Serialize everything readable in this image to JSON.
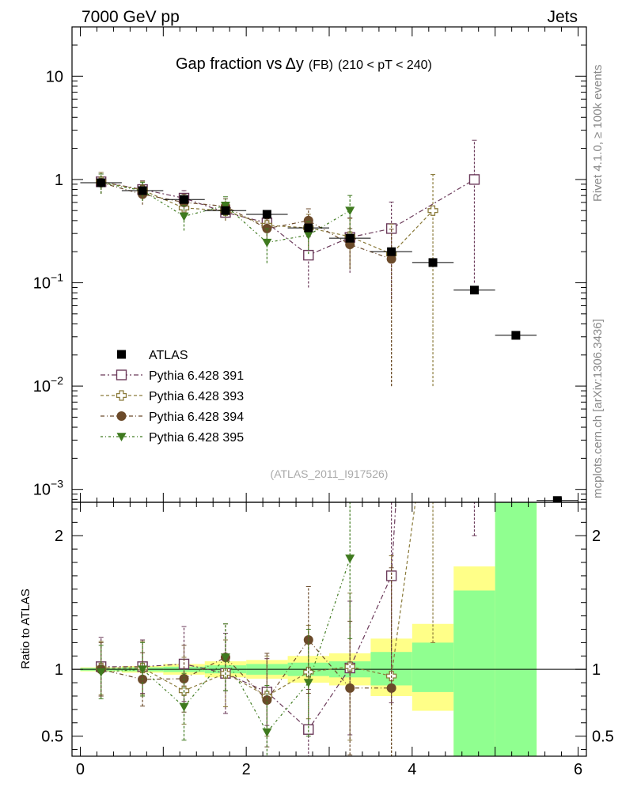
{
  "header": {
    "left": "7000 GeV pp",
    "right": "Jets"
  },
  "side_labels": {
    "rivet": "Rivet 4.1.0, ≥ 100k events",
    "mcplots": "mcplots.cern.ch [arXiv:1306.3436]"
  },
  "watermark": "(ATLAS_2011_I917526)",
  "chart_data": {
    "type": "scatter",
    "title": {
      "main": "Gap fraction vs",
      "delta": "Δy",
      "fb": "(FB)",
      "range": "(210 < pT < 240)"
    },
    "x_range": [
      -0.1,
      6.1
    ],
    "x_ticks": [
      0,
      2,
      4,
      6
    ],
    "x_tick_labels": [
      "0",
      "2",
      "4",
      "6"
    ],
    "top_panel": {
      "yscale": "log",
      "ylim": [
        0.00075,
        30
      ],
      "y_ticks": [
        0.001,
        0.01,
        0.1,
        1,
        10
      ],
      "y_tick_labels": [
        {
          "base": "10",
          "exp": "−3"
        },
        {
          "base": "10",
          "exp": "−2"
        },
        {
          "base": "10",
          "exp": "−1"
        },
        {
          "base": "1",
          "exp": ""
        },
        {
          "base": "10",
          "exp": ""
        }
      ]
    },
    "ratio_panel": {
      "ylabel": "Ratio to ATLAS",
      "ylim": [
        0.35,
        2.25
      ],
      "y_ticks": [
        0.5,
        1,
        2
      ],
      "y_tick_labels": [
        "0.5",
        "1",
        "2"
      ]
    },
    "data": {
      "name": "ATLAS",
      "x": [
        0.25,
        0.75,
        1.25,
        1.75,
        2.25,
        2.75,
        3.25,
        3.75,
        4.25,
        4.75,
        5.25,
        5.75
      ],
      "xerr": 0.25,
      "y": [
        0.93,
        0.78,
        0.64,
        0.5,
        0.46,
        0.34,
        0.27,
        0.2,
        0.157,
        0.085,
        0.031,
        0.00078
      ],
      "bands": [
        {
          "x0": 0.0,
          "x1": 0.5,
          "stat": [
            0.99,
            1.01
          ],
          "tot": [
            0.985,
            1.015
          ]
        },
        {
          "x0": 0.5,
          "x1": 1.0,
          "stat": [
            0.985,
            1.015
          ],
          "tot": [
            0.975,
            1.025
          ]
        },
        {
          "x0": 1.0,
          "x1": 1.5,
          "stat": [
            0.98,
            1.02
          ],
          "tot": [
            0.96,
            1.04
          ]
        },
        {
          "x0": 1.5,
          "x1": 2.0,
          "stat": [
            0.97,
            1.03
          ],
          "tot": [
            0.94,
            1.06
          ]
        },
        {
          "x0": 2.0,
          "x1": 2.5,
          "stat": [
            0.96,
            1.04
          ],
          "tot": [
            0.93,
            1.07
          ]
        },
        {
          "x0": 2.5,
          "x1": 3.0,
          "stat": [
            0.95,
            1.05
          ],
          "tot": [
            0.9,
            1.1
          ]
        },
        {
          "x0": 3.0,
          "x1": 3.5,
          "stat": [
            0.94,
            1.06
          ],
          "tot": [
            0.88,
            1.12
          ]
        },
        {
          "x0": 3.5,
          "x1": 4.0,
          "stat": [
            0.88,
            1.13
          ],
          "tot": [
            0.8,
            1.23
          ]
        },
        {
          "x0": 4.0,
          "x1": 4.5,
          "stat": [
            0.83,
            1.2
          ],
          "tot": [
            0.69,
            1.34
          ]
        },
        {
          "x0": 4.5,
          "x1": 5.0,
          "stat": [
            0.35,
            1.59
          ],
          "tot": [
            0.35,
            1.77
          ]
        },
        {
          "x0": 5.0,
          "x1": 5.5,
          "stat": [
            0.35,
            2.25
          ],
          "tot": [
            0.35,
            2.25
          ]
        }
      ]
    },
    "series": [
      {
        "name": "Pythia 6.428 391",
        "color": "#6b3a5a",
        "marker": "open-square",
        "dash": "6,3,2,3",
        "x": [
          0.25,
          0.75,
          1.25,
          1.75,
          2.25,
          2.75,
          3.25,
          3.75,
          4.75
        ],
        "y": [
          0.95,
          0.8,
          0.66,
          0.48,
          0.38,
          0.185,
          0.275,
          0.335,
          1.0
        ],
        "err_lo": [
          0.22,
          0.17,
          0.12,
          0.08,
          0.1,
          0.095,
          0.15,
          0.27,
          0.9
        ],
        "err_hi": [
          0.22,
          0.17,
          0.12,
          0.08,
          0.1,
          0.095,
          0.15,
          0.27,
          1.4
        ],
        "ratio": [
          1.02,
          1.02,
          1.04,
          0.97,
          0.83,
          0.55,
          1.01,
          1.7,
          12
        ],
        "ratio_err": [
          0.22,
          0.2,
          0.28,
          0.3,
          0.25,
          0.3,
          0.5,
          0.95,
          10
        ]
      },
      {
        "name": "Pythia 6.428 393",
        "color": "#8a7a3a",
        "marker": "open-cross",
        "dash": "4,3",
        "x": [
          0.25,
          0.75,
          1.25,
          1.75,
          2.25,
          2.75,
          3.25,
          3.75,
          4.25
        ],
        "y": [
          0.95,
          0.79,
          0.53,
          0.5,
          0.36,
          0.34,
          0.28,
          0.19,
          0.5
        ],
        "err_lo": [
          0.22,
          0.17,
          0.12,
          0.1,
          0.1,
          0.12,
          0.14,
          0.18,
          0.49
        ],
        "err_hi": [
          0.22,
          0.17,
          0.12,
          0.1,
          0.1,
          0.12,
          0.14,
          0.18,
          0.62
        ],
        "ratio": [
          1.01,
          1.01,
          0.84,
          0.97,
          0.8,
          0.98,
          1.02,
          0.95,
          3.2
        ],
        "ratio_err": [
          0.2,
          0.2,
          0.25,
          0.25,
          0.3,
          0.35,
          0.55,
          0.9,
          2.0
        ]
      },
      {
        "name": "Pythia 6.428 394",
        "color": "#6b4a2a",
        "marker": "filled-circle",
        "dash": "5,3,1,3",
        "x": [
          0.25,
          0.75,
          1.25,
          1.75,
          2.25,
          2.75,
          3.25,
          3.75
        ],
        "y": [
          0.93,
          0.72,
          0.6,
          0.55,
          0.335,
          0.4,
          0.235,
          0.17
        ],
        "err_lo": [
          0.2,
          0.15,
          0.12,
          0.1,
          0.08,
          0.12,
          0.1,
          0.16
        ],
        "err_hi": [
          0.2,
          0.15,
          0.12,
          0.1,
          0.08,
          0.12,
          0.1,
          0.16
        ],
        "ratio": [
          1.0,
          0.925,
          0.93,
          1.09,
          0.77,
          1.22,
          0.86,
          0.86
        ],
        "ratio_err": [
          0.2,
          0.2,
          0.25,
          0.25,
          0.35,
          0.4,
          0.5,
          0.9
        ]
      },
      {
        "name": "Pythia 6.428 395",
        "color": "#3f7a1f",
        "marker": "filled-triangle-down",
        "dash": "3,3,1,3",
        "x": [
          0.25,
          0.75,
          1.25,
          1.75,
          2.25,
          2.75,
          3.25
        ],
        "y": [
          0.93,
          0.78,
          0.44,
          0.56,
          0.245,
          0.29,
          0.5
        ],
        "err_lo": [
          0.2,
          0.16,
          0.12,
          0.12,
          0.09,
          0.1,
          0.2
        ],
        "err_hi": [
          0.2,
          0.16,
          0.12,
          0.12,
          0.09,
          0.1,
          0.2
        ],
        "ratio": [
          0.98,
          1.0,
          0.72,
          1.09,
          0.53,
          0.9,
          1.83
        ],
        "ratio_err": [
          0.2,
          0.2,
          0.25,
          0.25,
          0.35,
          0.4,
          0.6
        ]
      }
    ],
    "legend": {
      "placement": "lower-left",
      "entries": [
        "ATLAS",
        "Pythia 6.428 391",
        "Pythia 6.428 393",
        "Pythia 6.428 394",
        "Pythia 6.428 395"
      ]
    }
  }
}
